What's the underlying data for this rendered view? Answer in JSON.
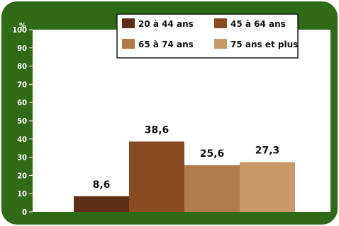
{
  "colors": {
    "frame": "#2f6b17",
    "plot_bg": "#ffffff",
    "legend_border": "#1a1a1a"
  },
  "chart_data": {
    "type": "bar",
    "ylabel": "%",
    "ylim": [
      0,
      100
    ],
    "yticks": [
      0,
      10,
      20,
      30,
      40,
      50,
      60,
      70,
      80,
      90,
      100
    ],
    "grid": false,
    "legend_position": "top-center",
    "series": [
      {
        "name": "20 à 44 ans",
        "value": 8.6,
        "label": "8,6",
        "color": "#5c2f16"
      },
      {
        "name": "45 à 64 ans",
        "value": 38.6,
        "label": "38,6",
        "color": "#8a4a22"
      },
      {
        "name": "65 à 74 ans",
        "value": 25.6,
        "label": "25,6",
        "color": "#b07b4b"
      },
      {
        "name": "75 ans et plus",
        "value": 27.3,
        "label": "27,3",
        "color": "#c9996a"
      }
    ]
  }
}
